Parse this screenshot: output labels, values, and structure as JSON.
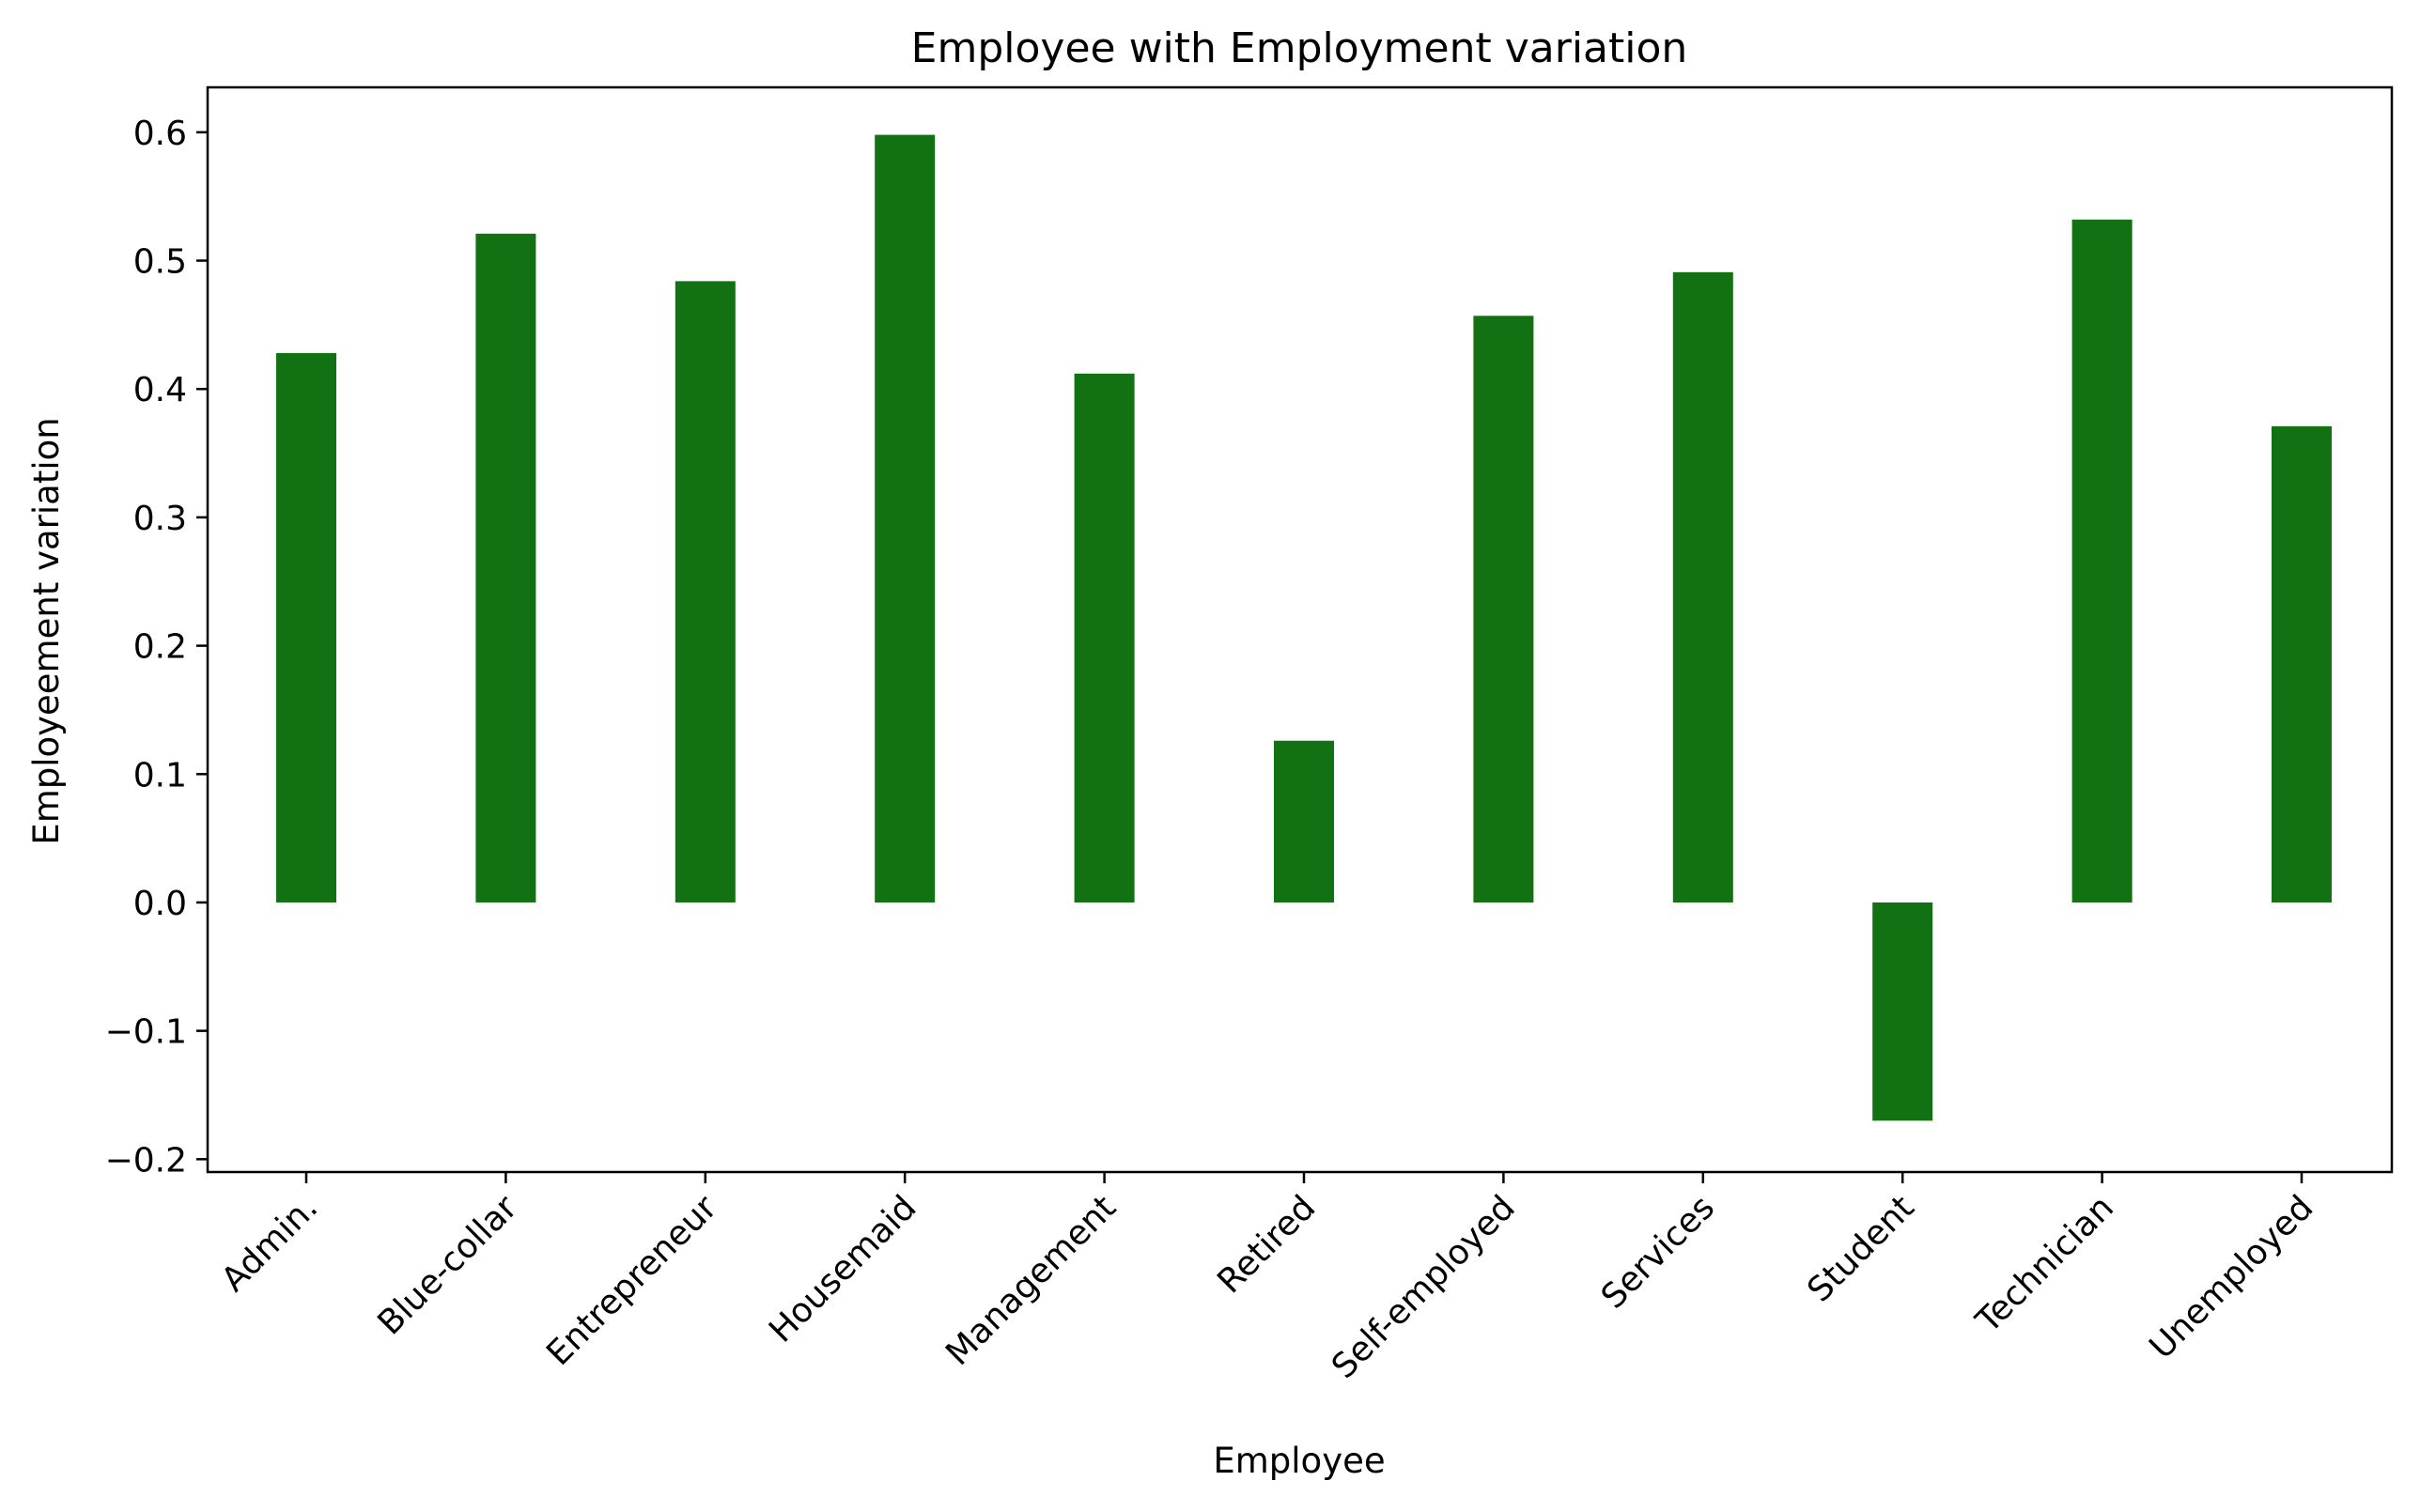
{
  "chart_data": {
    "type": "bar",
    "title": "Employee with Employment variation",
    "xlabel": "Employee",
    "ylabel": "Employeement variation",
    "categories": [
      "Admin.",
      "Blue-collar",
      "Entrepreneur",
      "Housemaid",
      "Management",
      "Retired",
      "Self-employed",
      "Services",
      "Student",
      "Technician",
      "Unemployed"
    ],
    "values": [
      0.428,
      0.521,
      0.484,
      0.598,
      0.412,
      0.126,
      0.457,
      0.491,
      -0.17,
      0.532,
      0.371
    ],
    "ylim": [
      -0.21,
      0.635
    ],
    "yticks": [
      -0.2,
      -0.1,
      0.0,
      0.1,
      0.2,
      0.3,
      0.4,
      0.5,
      0.6
    ],
    "ytick_labels": [
      "−0.2",
      "−0.1",
      "0.0",
      "0.1",
      "0.2",
      "0.3",
      "0.4",
      "0.5",
      "0.6"
    ],
    "bar_color": "#127112",
    "grid": false,
    "legend": "none"
  }
}
